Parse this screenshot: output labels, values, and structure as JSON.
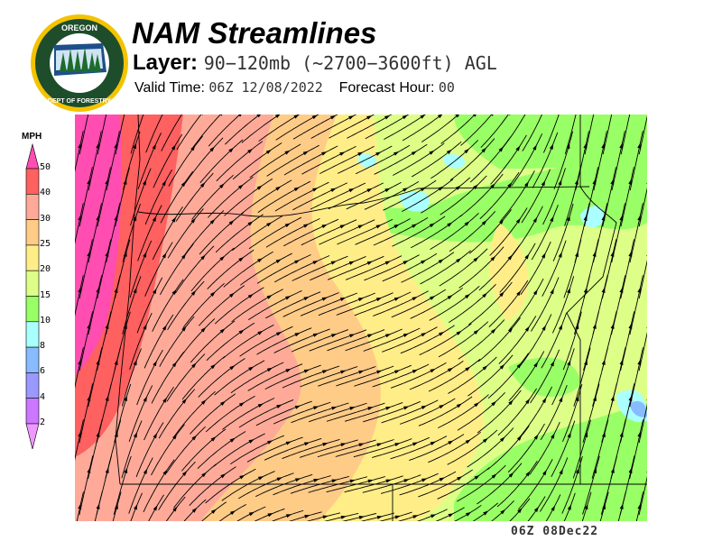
{
  "header": {
    "title": "NAM Streamlines",
    "layer_label": "Layer:",
    "layer_value": "90−120mb (~2700−3600ft) AGL",
    "valid_time_label": "Valid Time:",
    "valid_time_value": "06Z 12/08/2022",
    "forecast_hour_label": "Forecast Hour:",
    "forecast_hour_value": "00"
  },
  "logo": {
    "top_text": "OREGON",
    "bottom_text": "DEPARTMENT OF FORESTRY"
  },
  "legend": {
    "units": "MPH",
    "ticks": [
      "50",
      "40",
      "30",
      "25",
      "20",
      "15",
      "10",
      "8",
      "6",
      "4",
      "2"
    ],
    "colors": [
      "#ff4db2",
      "#ff6060",
      "#ffaa99",
      "#ffcc88",
      "#ffee88",
      "#ddff88",
      "#99ff66",
      "#aaffff",
      "#88bbff",
      "#9999ff",
      "#cc77ff",
      "#ee99ff"
    ]
  },
  "map": {
    "field": "wind speed streamlines",
    "region": "Oregon",
    "base_color": "#ddff88",
    "boundary_color": "#000000"
  },
  "footer": {
    "timestamp": "06Z 08Dec22"
  }
}
